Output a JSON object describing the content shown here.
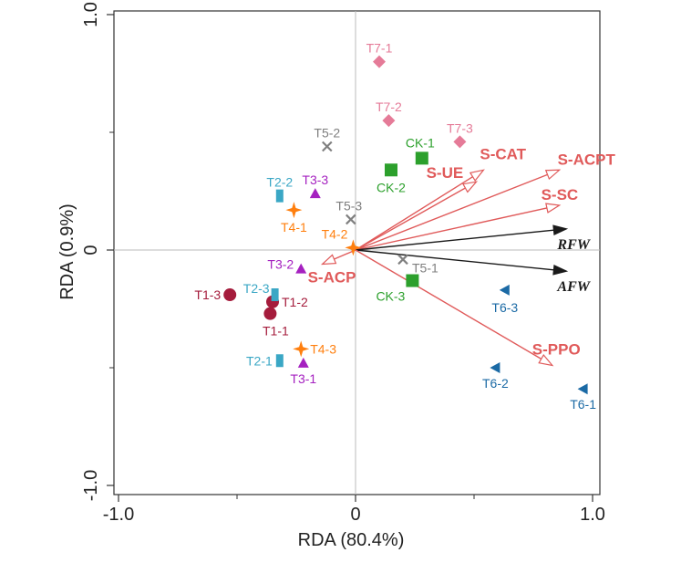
{
  "chart_data": {
    "type": "scatter",
    "xlabel": "RDA (80.4%)",
    "ylabel": "RDA (0.9%)",
    "xlim": [
      -1.0,
      1.0
    ],
    "ylim": [
      -1.0,
      1.0
    ],
    "x_ticks": [
      -1.0,
      0,
      1.0
    ],
    "x_tick_labels": [
      "-1.0",
      "0",
      "1.0"
    ],
    "y_ticks": [
      -1.0,
      0,
      1.0
    ],
    "y_tick_labels": [
      "-1.0",
      "0",
      "1.0"
    ],
    "reference_lines": {
      "x0": true,
      "y0": true
    },
    "points": [
      {
        "label": "T1-1",
        "x": -0.36,
        "y": -0.27,
        "marker": "circle",
        "color": "#a51c3c"
      },
      {
        "label": "T1-2",
        "x": -0.35,
        "y": -0.22,
        "marker": "circle",
        "color": "#a51c3c"
      },
      {
        "label": "T1-3",
        "x": -0.53,
        "y": -0.19,
        "marker": "circle",
        "color": "#a51c3c"
      },
      {
        "label": "T2-1",
        "x": -0.32,
        "y": -0.47,
        "marker": "rect",
        "color": "#3aa7c5"
      },
      {
        "label": "T2-2",
        "x": -0.32,
        "y": 0.23,
        "marker": "rect",
        "color": "#3aa7c5"
      },
      {
        "label": "T2-3",
        "x": -0.34,
        "y": -0.19,
        "marker": "rect",
        "color": "#3aa7c5"
      },
      {
        "label": "T3-1",
        "x": -0.22,
        "y": -0.48,
        "marker": "triangle-up",
        "color": "#a521c0"
      },
      {
        "label": "T3-2",
        "x": -0.23,
        "y": -0.08,
        "marker": "triangle-up",
        "color": "#a521c0"
      },
      {
        "label": "T3-3",
        "x": -0.17,
        "y": 0.24,
        "marker": "triangle-up",
        "color": "#a521c0"
      },
      {
        "label": "T4-1",
        "x": -0.26,
        "y": 0.17,
        "marker": "star",
        "color": "#ff7f0e"
      },
      {
        "label": "T4-2",
        "x": -0.01,
        "y": 0.01,
        "marker": "star",
        "color": "#ff7f0e"
      },
      {
        "label": "T4-3",
        "x": -0.23,
        "y": -0.42,
        "marker": "star",
        "color": "#ff7f0e"
      },
      {
        "label": "T5-1",
        "x": 0.2,
        "y": -0.04,
        "marker": "x",
        "color": "#7f7f7f"
      },
      {
        "label": "T5-2",
        "x": -0.12,
        "y": 0.44,
        "marker": "x",
        "color": "#7f7f7f"
      },
      {
        "label": "T5-3",
        "x": -0.02,
        "y": 0.13,
        "marker": "x",
        "color": "#7f7f7f"
      },
      {
        "label": "T6-1",
        "x": 0.96,
        "y": -0.59,
        "marker": "triangle-left",
        "color": "#1b6aa5"
      },
      {
        "label": "T6-2",
        "x": 0.59,
        "y": -0.5,
        "marker": "triangle-left",
        "color": "#1b6aa5"
      },
      {
        "label": "T6-3",
        "x": 0.63,
        "y": -0.17,
        "marker": "triangle-left",
        "color": "#1b6aa5"
      },
      {
        "label": "T7-1",
        "x": 0.1,
        "y": 0.8,
        "marker": "diamond",
        "color": "#e57b98"
      },
      {
        "label": "T7-2",
        "x": 0.14,
        "y": 0.55,
        "marker": "diamond",
        "color": "#e57b98"
      },
      {
        "label": "T7-3",
        "x": 0.44,
        "y": 0.46,
        "marker": "diamond",
        "color": "#e57b98"
      },
      {
        "label": "CK-1",
        "x": 0.28,
        "y": 0.39,
        "marker": "square",
        "color": "#2ca02c"
      },
      {
        "label": "CK-2",
        "x": 0.15,
        "y": 0.34,
        "marker": "square",
        "color": "#2ca02c"
      },
      {
        "label": "CK-3",
        "x": 0.24,
        "y": -0.13,
        "marker": "square",
        "color": "#2ca02c"
      }
    ],
    "vectors": [
      {
        "label": "S-CAT",
        "x": 0.54,
        "y": 0.34,
        "color": "#e05a5a",
        "style": "hollow"
      },
      {
        "label": "S-ACPT",
        "x": 0.86,
        "y": 0.34,
        "color": "#e05a5a",
        "style": "hollow"
      },
      {
        "label": "S-UE",
        "x": 0.51,
        "y": 0.29,
        "color": "#e05a5a",
        "style": "hollow"
      },
      {
        "label": "S-SC",
        "x": 0.86,
        "y": 0.19,
        "color": "#e05a5a",
        "style": "hollow"
      },
      {
        "label": "RFW",
        "x": 0.89,
        "y": 0.09,
        "color": "#1a1a1a",
        "style": "filled"
      },
      {
        "label": "AFW",
        "x": 0.89,
        "y": -0.09,
        "color": "#1a1a1a",
        "style": "filled"
      },
      {
        "label": "S-ACP",
        "x": -0.14,
        "y": -0.06,
        "color": "#e05a5a",
        "style": "hollow"
      },
      {
        "label": "S-PPO",
        "x": 0.83,
        "y": -0.49,
        "color": "#e05a5a",
        "style": "hollow"
      }
    ]
  }
}
